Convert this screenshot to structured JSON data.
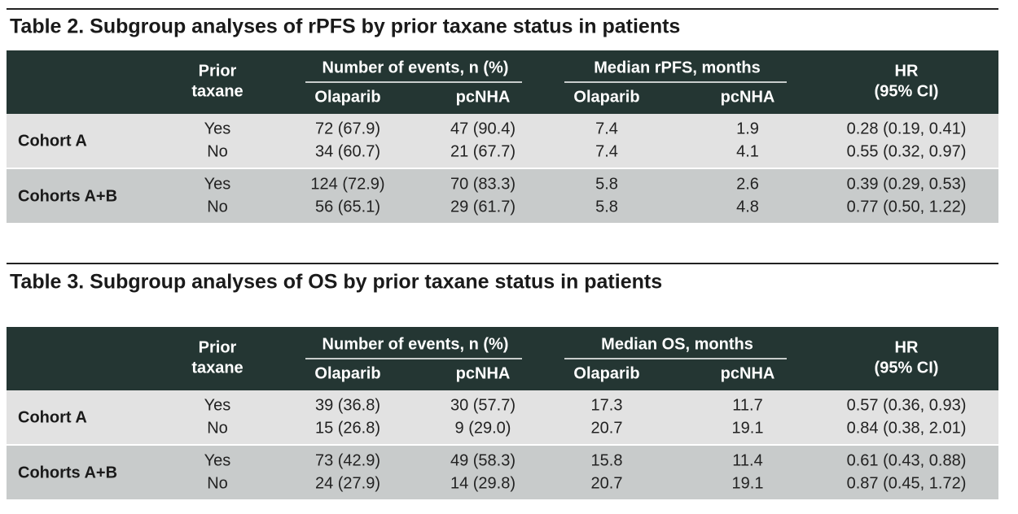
{
  "tables": [
    {
      "title": "Table 2. Subgroup analyses of rPFS by prior taxane status in patients",
      "header": {
        "prior_taxane": [
          "Prior",
          "taxane"
        ],
        "groups": [
          {
            "label": "Number of events, n (%)",
            "subs": [
              "Olaparib",
              "pcNHA"
            ]
          },
          {
            "label": "Median rPFS, months",
            "subs": [
              "Olaparib",
              "pcNHA"
            ]
          }
        ],
        "hr": [
          "HR",
          "(95% CI)"
        ]
      },
      "cohorts": [
        {
          "label": "Cohort A",
          "rows": [
            [
              "Yes",
              "72 (67.9)",
              "47 (90.4)",
              "7.4",
              "1.9",
              "0.28 (0.19, 0.41)"
            ],
            [
              "No",
              "34 (60.7)",
              "21 (67.7)",
              "7.4",
              "4.1",
              "0.55 (0.32, 0.97)"
            ]
          ]
        },
        {
          "label": "Cohorts A+B",
          "rows": [
            [
              "Yes",
              "124 (72.9)",
              "70 (83.3)",
              "5.8",
              "2.6",
              "0.39 (0.29, 0.53)"
            ],
            [
              "No",
              "56 (65.1)",
              "29 (61.7)",
              "5.8",
              "4.8",
              "0.77 (0.50, 1.22)"
            ]
          ]
        }
      ]
    },
    {
      "title": "Table 3. Subgroup analyses of OS by prior taxane status in patients",
      "header": {
        "prior_taxane": [
          "Prior",
          "taxane"
        ],
        "groups": [
          {
            "label": "Number of events, n (%)",
            "subs": [
              "Olaparib",
              "pcNHA"
            ]
          },
          {
            "label": "Median OS, months",
            "subs": [
              "Olaparib",
              "pcNHA"
            ]
          }
        ],
        "hr": [
          "HR",
          "(95% CI)"
        ]
      },
      "cohorts": [
        {
          "label": "Cohort A",
          "rows": [
            [
              "Yes",
              "39 (36.8)",
              "30 (57.7)",
              "17.3",
              "11.7",
              "0.57 (0.36, 0.93)"
            ],
            [
              "No",
              "15 (26.8)",
              "9 (29.0)",
              "20.7",
              "19.1",
              "0.84 (0.38, 2.01)"
            ]
          ]
        },
        {
          "label": "Cohorts A+B",
          "rows": [
            [
              "Yes",
              "73 (42.9)",
              "49 (58.3)",
              "15.8",
              "11.4",
              "0.61 (0.43, 0.88)"
            ],
            [
              "No",
              "24 (27.9)",
              "14 (29.8)",
              "20.7",
              "19.1",
              "0.87 (0.45, 1.72)"
            ]
          ]
        }
      ]
    }
  ]
}
